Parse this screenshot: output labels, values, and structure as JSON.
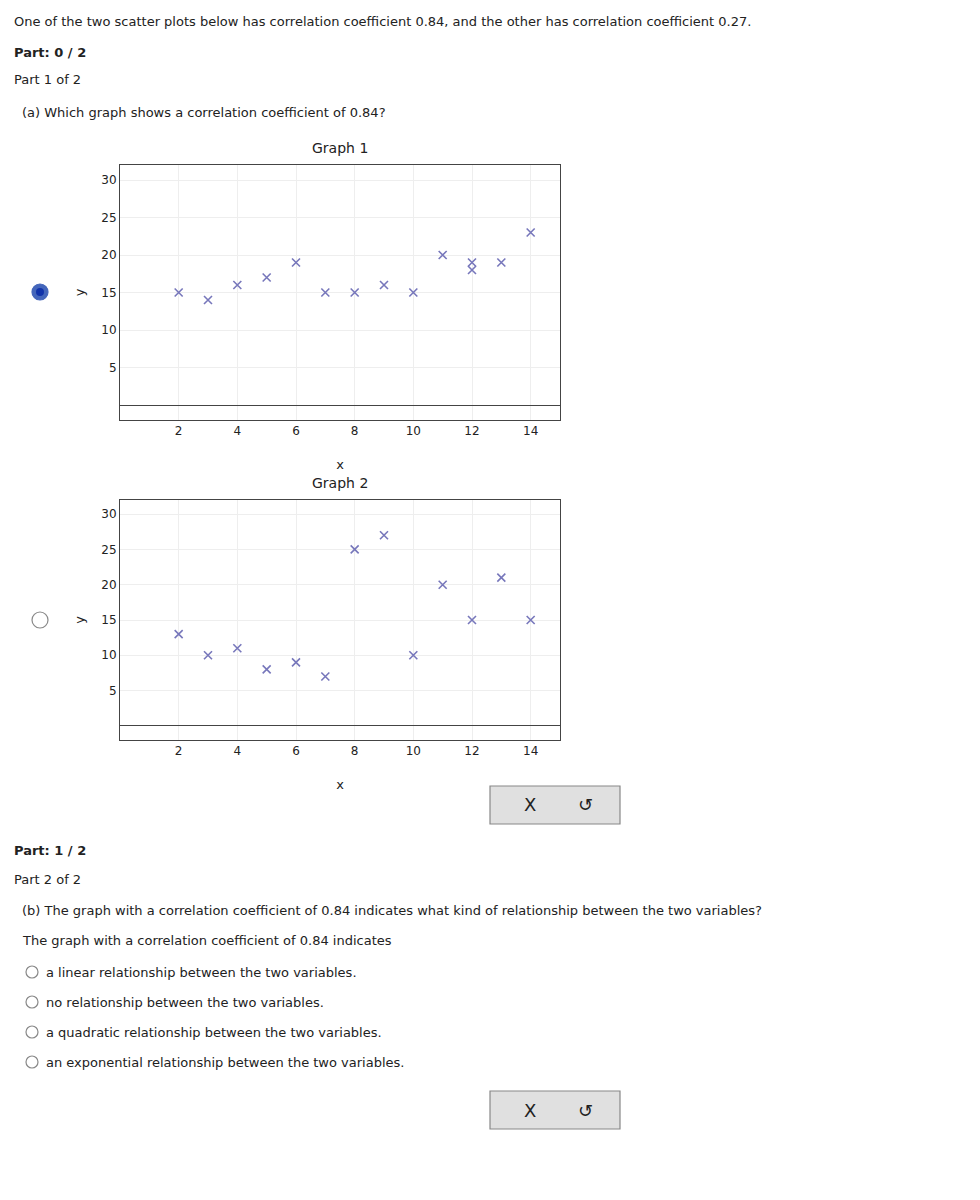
{
  "chart_data": [
    {
      "type": "scatter",
      "title": "Graph 1",
      "xlabel": "x",
      "ylabel": "y",
      "x": [
        2,
        3,
        4,
        5,
        6,
        7,
        8,
        9,
        10,
        11,
        12,
        12,
        13,
        14
      ],
      "values": [
        15,
        14,
        16,
        17,
        19,
        15,
        15,
        16,
        15,
        20,
        18,
        19,
        19,
        23
      ],
      "xlim": [
        0,
        15
      ],
      "ylim": [
        -2,
        32
      ],
      "xticks": [
        2,
        4,
        6,
        8,
        10,
        12,
        14
      ],
      "yticks": [
        5,
        10,
        15,
        20,
        25,
        30
      ],
      "color": "#7777bb",
      "marker": "x",
      "annotations": [
        "One of the two scatter plots below has correlation coefficient 0.84, and the other has correlation coefficient 0.27.",
        "Part: 0 / 2",
        "Part 1 of 2",
        "(a) Which graph shows a correlation coefficient of 0.84?",
        "X",
        "↺"
      ]
    },
    {
      "type": "scatter",
      "title": "Graph 2",
      "xlabel": "x",
      "ylabel": "y",
      "x": [
        2,
        3,
        4,
        5,
        6,
        7,
        8,
        9,
        10,
        11,
        12,
        13,
        14
      ],
      "values": [
        13,
        10,
        11,
        8,
        9,
        7,
        25,
        27,
        10,
        20,
        15,
        21,
        15
      ],
      "xlim": [
        0,
        15
      ],
      "ylim": [
        -2,
        32
      ],
      "xticks": [
        2,
        4,
        6,
        8,
        10,
        12,
        14
      ],
      "yticks": [
        5,
        10,
        15,
        20,
        25,
        30
      ],
      "color": "#7777bb",
      "marker": "x",
      "annotations": [
        "Part: 1 / 2",
        "Part 2 of 2",
        "(b) The graph with a correlation coefficient of 0.84 indicates what kind of relationship between the two variables?",
        "The graph with a correlation coefficient of 0.84 indicates",
        "a linear relationship between the two variables.",
        "no relationship between the two variables.",
        "a quadratic relationship between the two variables.",
        "an exponential relationship between the two variables.",
        "X",
        "↺"
      ]
    }
  ]
}
